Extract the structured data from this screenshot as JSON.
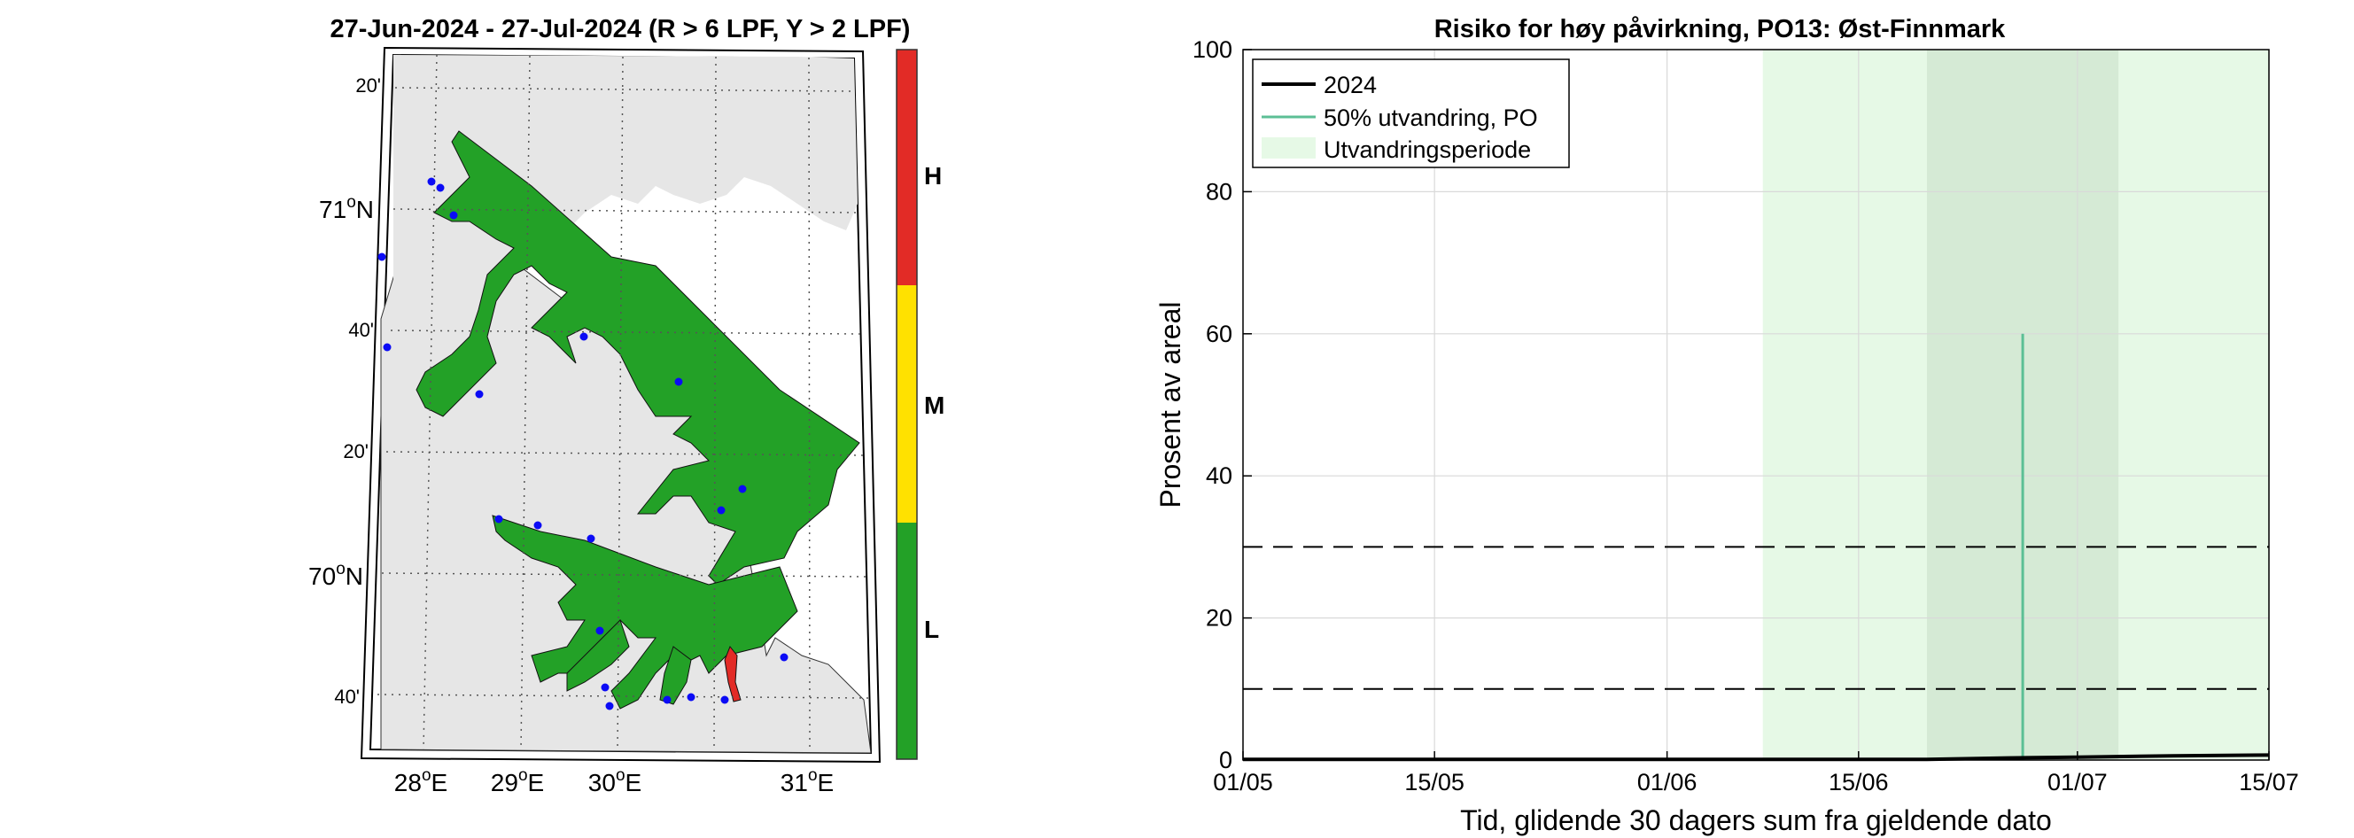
{
  "map": {
    "title": "27-Jun-2024  - 27-Jul-2024  (R > 6 LPF, Y > 2 LPF)",
    "lon_ticks": [
      {
        "deg": "28",
        "suffix": "E"
      },
      {
        "deg": "29",
        "suffix": "E"
      },
      {
        "deg": "30",
        "suffix": "E"
      },
      {
        "deg": "31",
        "suffix": "E"
      }
    ],
    "lat_ticks_major": [
      {
        "deg": "71",
        "suffix": "N"
      },
      {
        "deg": "70",
        "suffix": "N"
      }
    ],
    "lat_ticks_minor": [
      "20'",
      "40'",
      "20'",
      "40'"
    ],
    "colors": {
      "land": "#e6e6e6",
      "water": "#23a127",
      "red": "#e22b26",
      "stations": "#0b0bf5",
      "frame": "#000000"
    }
  },
  "colorbar": {
    "labels": [
      "H",
      "M",
      "L"
    ],
    "colors": [
      "#e22b26",
      "#ffe100",
      "#23a127"
    ]
  },
  "chart_data": {
    "type": "line",
    "title": "Risiko for høy påvirkning, PO13: Øst-Finnmark",
    "xlabel": "Tid, glidende 30 dagers sum fra gjeldende dato",
    "ylabel": "Prosent av areal",
    "x_ticks": [
      "01/05",
      "15/05",
      "01/06",
      "15/06",
      "01/07",
      "15/07"
    ],
    "x_tick_dates": [
      "2024-05-01",
      "2024-05-15",
      "2024-06-01",
      "2024-06-15",
      "2024-07-01",
      "2024-07-15"
    ],
    "xlim": [
      "2024-05-01",
      "2024-07-15"
    ],
    "ylim": [
      0,
      100
    ],
    "y_ticks": [
      0,
      20,
      40,
      60,
      80,
      100
    ],
    "grid": true,
    "legend": {
      "placement": "top-left",
      "entries": [
        "2024",
        "50% utvandring, PO",
        "Utvandringsperiode"
      ]
    },
    "series": [
      {
        "name": "2024",
        "color": "#000000",
        "points": [
          {
            "x": "2024-05-01",
            "y": 0.1
          },
          {
            "x": "2024-06-20",
            "y": 0.1
          },
          {
            "x": "2024-06-26",
            "y": 0.3
          },
          {
            "x": "2024-07-01",
            "y": 0.4
          },
          {
            "x": "2024-07-08",
            "y": 0.6
          },
          {
            "x": "2024-07-15",
            "y": 0.7
          }
        ]
      }
    ],
    "marker_line": {
      "name": "50% utvandring, PO",
      "x": "2024-06-27",
      "y": [
        0,
        60
      ],
      "color": "#5cbf95"
    },
    "bands": [
      {
        "name": "Utvandringsperiode",
        "start": "2024-06-08",
        "end": "2024-07-15",
        "color": "#e6f9e6"
      },
      {
        "start": "2024-06-20",
        "end": "2024-07-04",
        "color": "#d5ead5"
      }
    ],
    "reference_lines": [
      {
        "y": 30,
        "style": "dashed"
      },
      {
        "y": 10,
        "style": "dashed"
      }
    ]
  }
}
